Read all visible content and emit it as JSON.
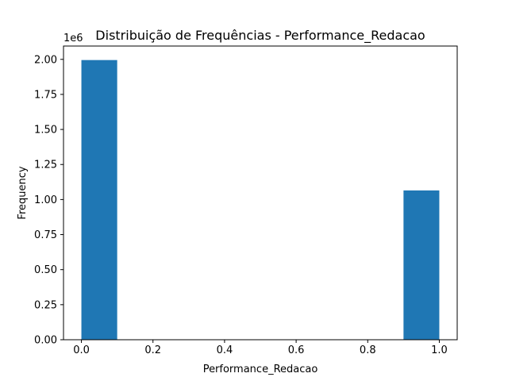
{
  "chart_data": {
    "type": "bar",
    "title": "Distribuição de Frequências - Performance_Redacao",
    "xlabel": "Performance_Redacao",
    "ylabel": "Frequency",
    "y_offset_label": "1e6",
    "bins": [
      {
        "x0": 0.0,
        "x1": 0.1,
        "value": 1995000
      },
      {
        "x0": 0.1,
        "x1": 0.2,
        "value": 0
      },
      {
        "x0": 0.2,
        "x1": 0.3,
        "value": 0
      },
      {
        "x0": 0.3,
        "x1": 0.4,
        "value": 0
      },
      {
        "x0": 0.4,
        "x1": 0.5,
        "value": 0
      },
      {
        "x0": 0.5,
        "x1": 0.6,
        "value": 0
      },
      {
        "x0": 0.6,
        "x1": 0.7,
        "value": 0
      },
      {
        "x0": 0.7,
        "x1": 0.8,
        "value": 0
      },
      {
        "x0": 0.8,
        "x1": 0.9,
        "value": 0
      },
      {
        "x0": 0.9,
        "x1": 1.0,
        "value": 1065000
      }
    ],
    "xlim": [
      -0.05,
      1.05
    ],
    "ylim": [
      0,
      2095000
    ],
    "x_ticks": [
      0.0,
      0.2,
      0.4,
      0.6,
      0.8,
      1.0
    ],
    "x_tick_labels": [
      "0.0",
      "0.2",
      "0.4",
      "0.6",
      "0.8",
      "1.0"
    ],
    "y_ticks": [
      0,
      250000,
      500000,
      750000,
      1000000,
      1250000,
      1500000,
      1750000,
      2000000
    ],
    "y_tick_labels": [
      "0.00",
      "0.25",
      "0.50",
      "0.75",
      "1.00",
      "1.25",
      "1.50",
      "1.75",
      "2.00"
    ],
    "grid": false,
    "bar_color": "#1f77b4"
  }
}
